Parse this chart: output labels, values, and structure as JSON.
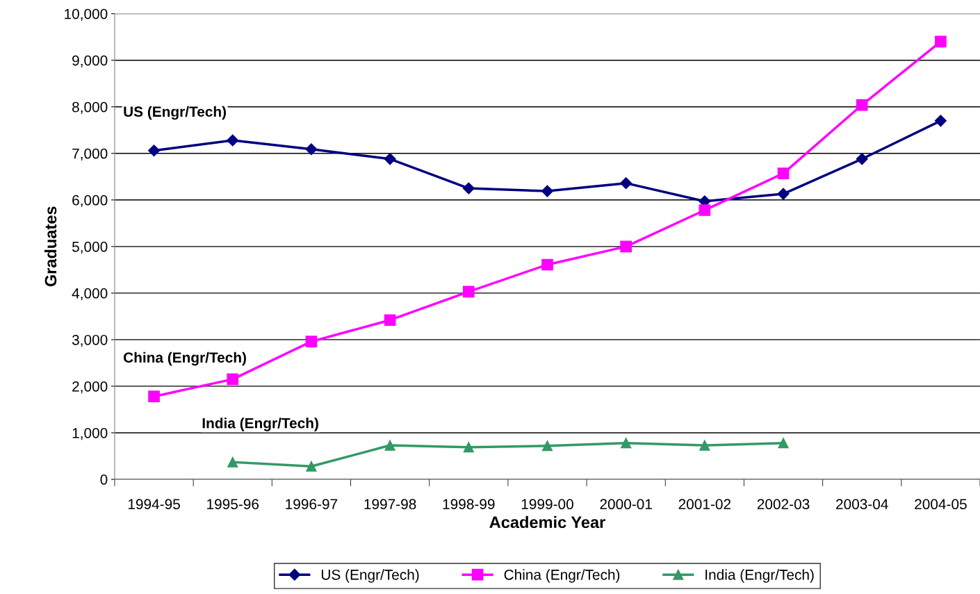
{
  "chart_data": {
    "type": "line",
    "xlabel": "Academic Year",
    "ylabel": "Graduates",
    "categories": [
      "1994-95",
      "1995-96",
      "1996-97",
      "1997-98",
      "1998-99",
      "1999-00",
      "2000-01",
      "2001-02",
      "2002-03",
      "2003-04",
      "2004-05"
    ],
    "series": [
      {
        "name": "US (Engr/Tech)",
        "color": "#000080",
        "marker": "diamond",
        "values": [
          7060,
          7280,
          7090,
          6880,
          6250,
          6190,
          6360,
          5970,
          6130,
          6880,
          7700
        ]
      },
      {
        "name": "China (Engr/Tech)",
        "color": "#ff00ff",
        "marker": "square",
        "values": [
          1780,
          2150,
          2960,
          3420,
          4030,
          4610,
          5000,
          5780,
          6570,
          8040,
          9400
        ]
      },
      {
        "name": "India (Engr/Tech)",
        "color": "#339966",
        "marker": "triangle",
        "values": [
          null,
          370,
          280,
          730,
          690,
          720,
          780,
          730,
          780,
          null,
          null
        ]
      }
    ],
    "annotations": [
      "US (Engr/Tech)",
      "China (Engr/Tech)",
      "India (Engr/Tech)"
    ],
    "ylim": [
      0,
      10000
    ],
    "yticks": [
      {
        "value": 0,
        "label": "0"
      },
      {
        "value": 1000,
        "label": "1,000"
      },
      {
        "value": 2000,
        "label": "2,000"
      },
      {
        "value": 3000,
        "label": "3,000"
      },
      {
        "value": 4000,
        "label": "4,000"
      },
      {
        "value": 5000,
        "label": "5,000"
      },
      {
        "value": 6000,
        "label": "6,000"
      },
      {
        "value": 7000,
        "label": "7,000"
      },
      {
        "value": 8000,
        "label": "8,000"
      },
      {
        "value": 9000,
        "label": "9,000"
      },
      {
        "value": 10000,
        "label": "10,000"
      }
    ],
    "grid": "y",
    "legend": "bottom",
    "line_style": "solid"
  }
}
